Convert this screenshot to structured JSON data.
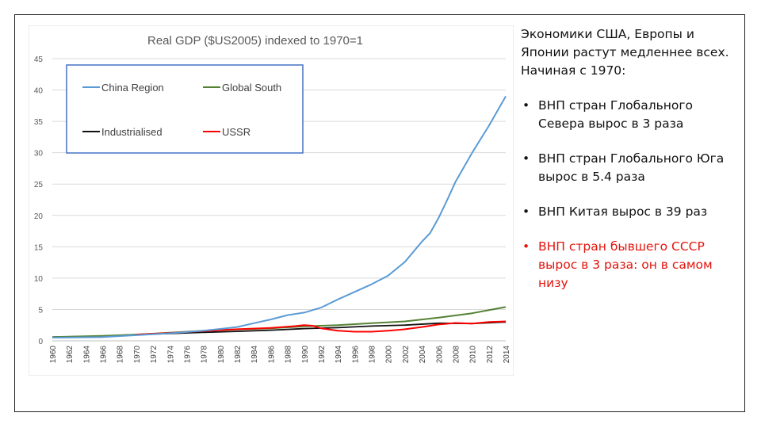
{
  "chart_data": {
    "type": "line",
    "title": "Real GDP ($US2005) indexed to 1970=1",
    "xlabel": "",
    "ylabel": "",
    "ylim": [
      0,
      45
    ],
    "yticks": [
      0,
      5,
      10,
      15,
      20,
      25,
      30,
      35,
      40,
      45
    ],
    "xlim": [
      1960,
      2014
    ],
    "xticks": [
      1960,
      1962,
      1964,
      1966,
      1968,
      1970,
      1972,
      1974,
      1976,
      1978,
      1980,
      1982,
      1984,
      1986,
      1988,
      1990,
      1992,
      1994,
      1996,
      1998,
      2000,
      2002,
      2004,
      2006,
      2008,
      2010,
      2012,
      2014
    ],
    "grid": true,
    "legend": "top-left",
    "series": [
      {
        "name": "China Region",
        "color": "#5b9bd5",
        "x": [
          1960,
          1966,
          1970,
          1974,
          1978,
          1980,
          1982,
          1984,
          1986,
          1988,
          1990,
          1992,
          1994,
          1996,
          1998,
          2000,
          2002,
          2004,
          2005,
          2006,
          2007,
          2008,
          2010,
          2012,
          2014
        ],
        "y": [
          0.5,
          0.6,
          0.9,
          1.2,
          1.6,
          1.9,
          2.2,
          2.8,
          3.4,
          4.1,
          4.5,
          5.3,
          6.6,
          7.8,
          9.0,
          10.4,
          12.6,
          15.8,
          17.2,
          19.6,
          22.4,
          25.3,
          30.0,
          34.3,
          39.0
        ]
      },
      {
        "name": "Global South",
        "color": "#548235",
        "x": [
          1960,
          1966,
          1970,
          1974,
          1978,
          1982,
          1986,
          1990,
          1994,
          1998,
          2002,
          2006,
          2010,
          2014
        ],
        "y": [
          0.6,
          0.8,
          1.0,
          1.3,
          1.6,
          1.8,
          2.0,
          2.3,
          2.5,
          2.8,
          3.1,
          3.7,
          4.4,
          5.4
        ]
      },
      {
        "name": "Industrialised",
        "color": "#111111",
        "x": [
          1960,
          1966,
          1970,
          1974,
          1978,
          1982,
          1986,
          1990,
          1994,
          1998,
          2002,
          2006,
          2010,
          2014
        ],
        "y": [
          0.6,
          0.75,
          1.0,
          1.15,
          1.35,
          1.5,
          1.7,
          1.95,
          2.1,
          2.35,
          2.5,
          2.8,
          2.75,
          3.0
        ]
      },
      {
        "name": "USSR",
        "color": "#ff0000",
        "x": [
          1970,
          1974,
          1978,
          1982,
          1986,
          1989,
          1990,
          1991,
          1992,
          1993,
          1994,
          1996,
          1998,
          2000,
          2002,
          2004,
          2006,
          2008,
          2010,
          2012,
          2014
        ],
        "y": [
          1.0,
          1.25,
          1.55,
          1.85,
          2.05,
          2.35,
          2.5,
          2.4,
          2.0,
          1.8,
          1.6,
          1.45,
          1.45,
          1.6,
          1.85,
          2.2,
          2.6,
          2.85,
          2.75,
          3.0,
          3.1
        ]
      }
    ]
  },
  "text": {
    "intro": "Экономики США, Европы и Японии растут медленнее всех. Начиная с 1970:",
    "bullet_char": "•",
    "bullets": [
      "ВНП стран Глобального Севера вырос в 3 раза",
      "ВНП стран Глобального Юга вырос в 5.4 раза",
      "ВНП Китая вырос в 39 раз",
      "ВНП стран бывшего СССР вырос в 3 раза: он в самом низу"
    ]
  }
}
